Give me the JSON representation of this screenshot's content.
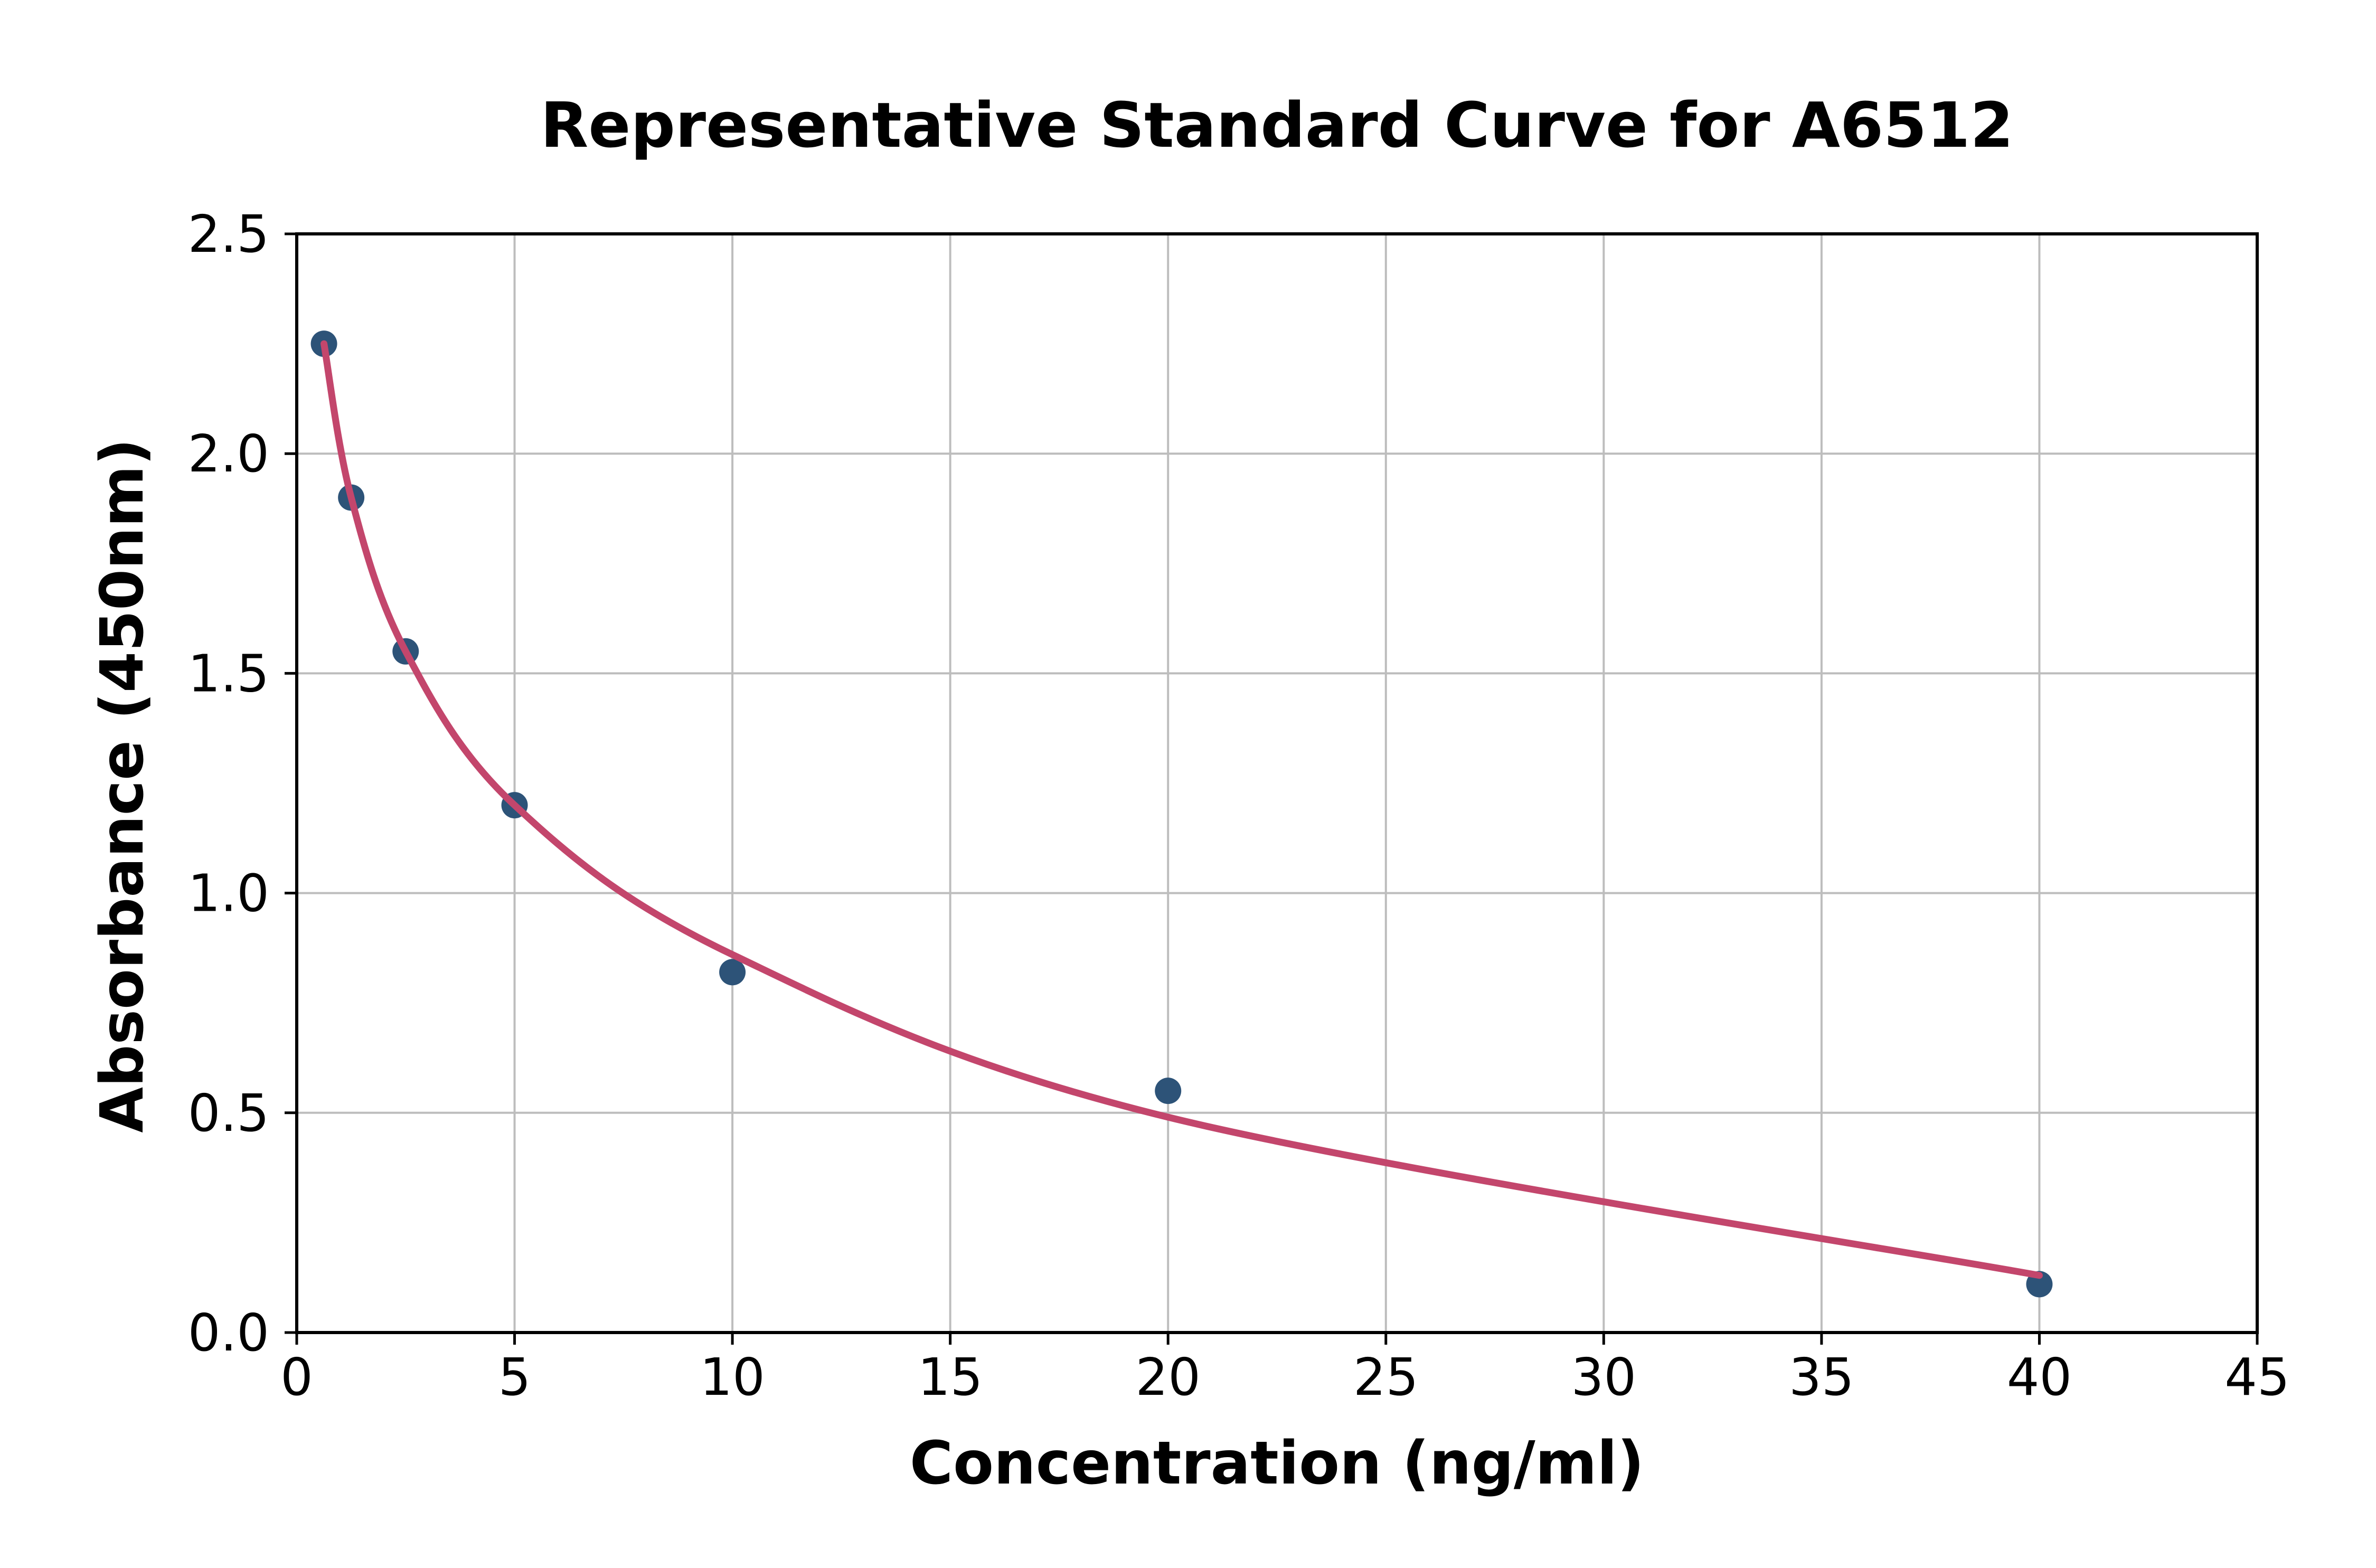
{
  "chart_data": {
    "type": "scatter",
    "title": "Representative Standard Curve for A6512",
    "xlabel": "Concentration (ng/ml)",
    "ylabel": "Absorbance (450nm)",
    "xlim": [
      0,
      45
    ],
    "ylim": [
      0.0,
      2.5
    ],
    "xticks": [
      0,
      5,
      10,
      15,
      20,
      25,
      30,
      35,
      40,
      45
    ],
    "xtick_labels": [
      "0",
      "5",
      "10",
      "15",
      "20",
      "25",
      "30",
      "35",
      "40",
      "45"
    ],
    "yticks": [
      0.0,
      0.5,
      1.0,
      1.5,
      2.0,
      2.5
    ],
    "ytick_labels": [
      "0.0",
      "0.5",
      "1.0",
      "1.5",
      "2.0",
      "2.5"
    ],
    "grid": true,
    "legend_position": "none",
    "series": [
      {
        "name": "standard-points",
        "type": "scatter",
        "x": [
          0.625,
          1.25,
          2.5,
          5,
          10,
          20,
          40
        ],
        "y": [
          2.25,
          1.9,
          1.55,
          1.2,
          0.82,
          0.55,
          0.11
        ],
        "color": "#2d5378"
      },
      {
        "name": "fitted-curve",
        "type": "line",
        "x": [
          0.625,
          1.25,
          2.5,
          5,
          10,
          20,
          40
        ],
        "y": [
          2.25,
          1.9,
          1.55,
          1.2,
          0.86,
          0.49,
          0.13
        ],
        "color": "#c3466c"
      }
    ],
    "colors": {
      "marker": "#2d5378",
      "curve": "#c3466c",
      "grid": "#bdbdbd",
      "axis": "#000000",
      "background": "#ffffff"
    }
  }
}
